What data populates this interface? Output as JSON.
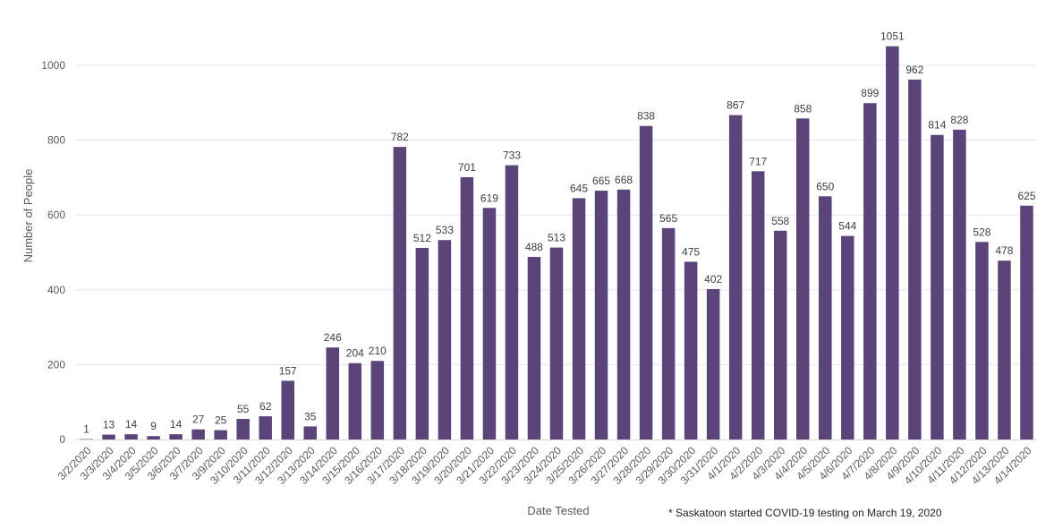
{
  "chart_data": {
    "type": "bar",
    "title": "",
    "xlabel": "Date Tested",
    "ylabel": "Number of People",
    "ylim": [
      0,
      1100
    ],
    "yticks": [
      0,
      200,
      400,
      600,
      800,
      1000
    ],
    "grid": true,
    "legend": "none",
    "bar_color": "#5b4479",
    "categories": [
      "3/2/2020",
      "3/3/2020",
      "3/4/2020",
      "3/5/2020",
      "3/6/2020",
      "3/7/2020",
      "3/9/2020",
      "3/10/2020",
      "3/11/2020",
      "3/12/2020",
      "3/13/2020",
      "3/14/2020",
      "3/15/2020",
      "3/16/2020",
      "3/17/2020",
      "3/18/2020",
      "3/19/2020",
      "3/20/2020",
      "3/21/2020",
      "3/22/2020",
      "3/23/2020",
      "3/24/2020",
      "3/25/2020",
      "3/26/2020",
      "3/27/2020",
      "3/28/2020",
      "3/29/2020",
      "3/30/2020",
      "3/31/2020",
      "4/1/2020",
      "4/2/2020",
      "4/3/2020",
      "4/4/2020",
      "4/5/2020",
      "4/6/2020",
      "4/7/2020",
      "4/8/2020",
      "4/9/2020",
      "4/10/2020",
      "4/11/2020",
      "4/12/2020",
      "4/13/2020",
      "4/14/2020"
    ],
    "values": [
      1,
      13,
      14,
      9,
      14,
      27,
      25,
      55,
      62,
      157,
      35,
      246,
      204,
      210,
      782,
      512,
      533,
      701,
      619,
      733,
      488,
      513,
      645,
      665,
      668,
      838,
      565,
      475,
      402,
      867,
      717,
      558,
      858,
      650,
      544,
      899,
      1051,
      962,
      814,
      828,
      528,
      478,
      625
    ],
    "annotation": "* Saskatoon started COVID-19 testing on March 19, 2020"
  }
}
